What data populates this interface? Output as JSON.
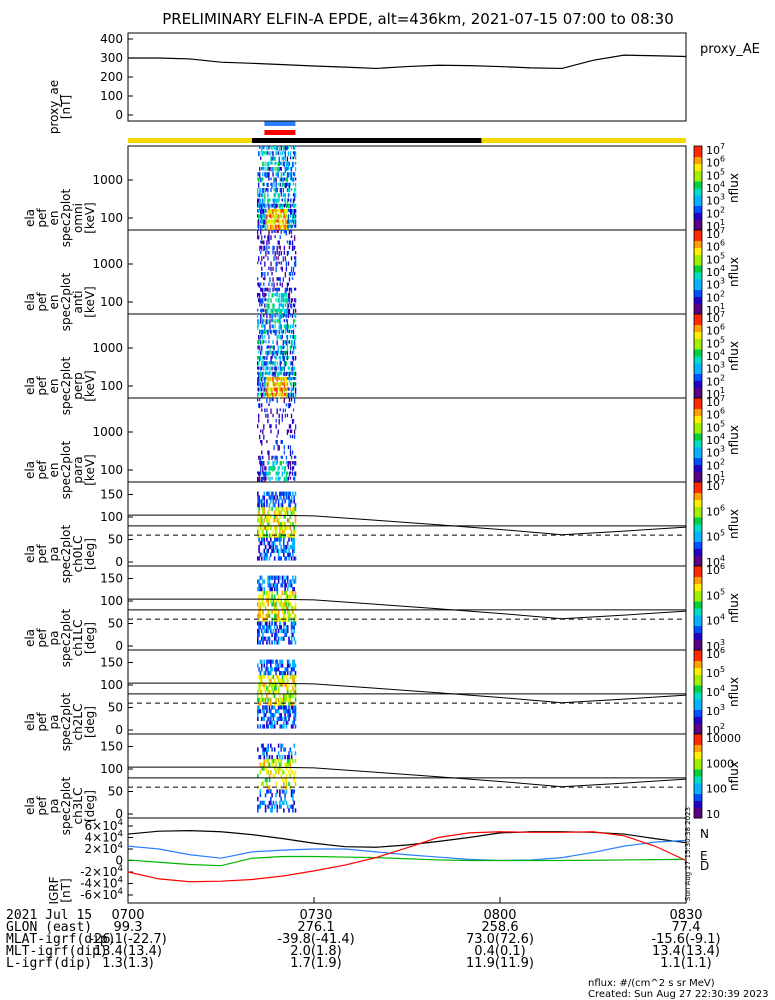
{
  "title": "PRELIMINARY ELFIN-A EPDE, alt=436km, 2021-07-15 07:00 to 08:30",
  "colors": {
    "yellow": "#f5d800",
    "blue": "#2a7fff",
    "red": "#ff0000",
    "black": "#000000",
    "green": "#00b400",
    "navy": "#1e1ea0"
  },
  "timebars": {
    "yellow_bar": "full width",
    "black_segment": [
      "07:20",
      "07:57"
    ],
    "blue_segment": [
      "07:22",
      "07:27"
    ],
    "red_segment": [
      "07:22",
      "07:27"
    ]
  },
  "panels": [
    {
      "id": "proxy_ae",
      "ylabel": [
        "proxy_ae",
        "[nT]"
      ],
      "right_label": "proxy_AE",
      "yticks": [
        "0",
        "100",
        "200",
        "300",
        "400"
      ]
    },
    {
      "id": "omni",
      "ylabel": [
        "ela",
        "pef",
        "en",
        "spec2plot",
        "omni",
        "[keV]"
      ],
      "yticks": [
        "100",
        "1000"
      ],
      "cbar_ticks": [
        "10^1",
        "10^2",
        "10^3",
        "10^4",
        "10^5",
        "10^6",
        "10^7"
      ],
      "cbar_label": "nflux"
    },
    {
      "id": "anti",
      "ylabel": [
        "ela",
        "pef",
        "en",
        "spec2plot",
        "anti",
        "[keV]"
      ],
      "yticks": [
        "100",
        "1000"
      ],
      "cbar_ticks": [
        "10^1",
        "10^2",
        "10^3",
        "10^4",
        "10^5",
        "10^6",
        "10^7"
      ],
      "cbar_label": "nflux"
    },
    {
      "id": "perp",
      "ylabel": [
        "ela",
        "pef",
        "en",
        "spec2plot",
        "perp",
        "[keV]"
      ],
      "yticks": [
        "100",
        "1000"
      ],
      "cbar_ticks": [
        "10^1",
        "10^2",
        "10^3",
        "10^4",
        "10^5",
        "10^6",
        "10^7"
      ],
      "cbar_label": "nflux"
    },
    {
      "id": "para",
      "ylabel": [
        "ela",
        "pef",
        "en",
        "spec2plot",
        "para",
        "[keV]"
      ],
      "yticks": [
        "100",
        "1000"
      ],
      "cbar_ticks": [
        "10^1",
        "10^2",
        "10^3",
        "10^4",
        "10^5",
        "10^6",
        "10^7"
      ],
      "cbar_label": "nflux"
    },
    {
      "id": "ch0",
      "ylabel": [
        "ela",
        "pef",
        "pa",
        "spec2plot",
        "ch0LC",
        "[deg]"
      ],
      "yticks": [
        "0",
        "50",
        "100",
        "150"
      ],
      "cbar_ticks": [
        "10^4",
        "10^5",
        "10^6",
        "10^7"
      ],
      "cbar_label": "nflux"
    },
    {
      "id": "ch1",
      "ylabel": [
        "ela",
        "pef",
        "pa",
        "spec2plot",
        "ch1LC",
        "[deg]"
      ],
      "yticks": [
        "0",
        "50",
        "100",
        "150"
      ],
      "cbar_ticks": [
        "10^3",
        "10^4",
        "10^5",
        "10^6"
      ],
      "cbar_label": "nflux"
    },
    {
      "id": "ch2",
      "ylabel": [
        "ela",
        "pef",
        "pa",
        "spec2plot",
        "ch2LC",
        "[deg]"
      ],
      "yticks": [
        "0",
        "50",
        "100",
        "150"
      ],
      "cbar_ticks": [
        "10^2",
        "10^3",
        "10^4",
        "10^5",
        "10^6"
      ],
      "cbar_label": "nflux"
    },
    {
      "id": "ch3",
      "ylabel": [
        "ela",
        "pef",
        "pa",
        "spec2plot",
        "ch3LC",
        "[deg]"
      ],
      "yticks": [
        "0",
        "50",
        "100",
        "150"
      ],
      "cbar_ticks": [
        "10",
        "100",
        "1000",
        "10000"
      ],
      "cbar_label": "nflux"
    },
    {
      "id": "igrf",
      "ylabel": [
        "IGRF",
        "[nT]"
      ],
      "yticks": [
        "-6×10^4",
        "-4×10^4",
        "-2×10^4",
        "0",
        "2×10^4",
        "4×10^4",
        "6×10^4"
      ],
      "legend": [
        "N",
        "E",
        "D"
      ],
      "side_note": "Sun Aug 27 15:30:38 2023"
    }
  ],
  "chart_data": {
    "type": "line",
    "proxy_ae": {
      "x": [
        "07:00",
        "07:05",
        "07:10",
        "07:15",
        "07:20",
        "07:25",
        "07:30",
        "07:35",
        "07:40",
        "07:45",
        "07:50",
        "07:55",
        "08:00",
        "08:05",
        "08:10",
        "08:15",
        "08:20",
        "08:25",
        "08:30"
      ],
      "y": [
        300,
        300,
        295,
        278,
        272,
        265,
        258,
        252,
        245,
        255,
        262,
        260,
        255,
        248,
        245,
        288,
        315,
        312,
        308
      ],
      "ylim": [
        0,
        420
      ]
    },
    "loss_cone_deg": {
      "x": [
        "07:22",
        "07:30",
        "07:40",
        "07:50",
        "08:00",
        "08:10",
        "08:20",
        "08:30"
      ],
      "upper_solid": [
        117,
        115,
        104,
        93,
        81,
        68,
        77,
        87
      ],
      "lower_solid": [
        90,
        90,
        90,
        90,
        90,
        90,
        90,
        90
      ],
      "dashed": [
        67,
        67,
        67,
        67,
        67,
        67,
        67,
        67
      ],
      "ylim": [
        0,
        180
      ]
    },
    "igrf_nT": {
      "x": [
        "07:00",
        "07:05",
        "07:10",
        "07:15",
        "07:20",
        "07:25",
        "07:30",
        "07:35",
        "07:40",
        "07:45",
        "07:50",
        "07:55",
        "08:00",
        "08:05",
        "08:10",
        "08:15",
        "08:20",
        "08:25",
        "08:30"
      ],
      "N": [
        -20000,
        -32000,
        -37000,
        -36000,
        -33000,
        -27000,
        -18000,
        -8000,
        5000,
        22000,
        40000,
        48000,
        50000,
        49000,
        49000,
        50000,
        43000,
        25000,
        0
      ],
      "E": [
        1000,
        -3000,
        -7000,
        -9000,
        4000,
        7000,
        7000,
        6000,
        5000,
        3000,
        1000,
        0,
        0,
        0,
        0,
        500,
        1000,
        1500,
        2000
      ],
      "D": [
        46000,
        51000,
        52000,
        50000,
        45000,
        38000,
        30000,
        24000,
        23000,
        27000,
        33000,
        40000,
        48000,
        50000,
        50000,
        49000,
        46000,
        38000,
        31000
      ],
      "B_blue": [
        25000,
        20000,
        10000,
        4000,
        15000,
        18000,
        20000,
        20000,
        15000,
        10000,
        6000,
        2000,
        0,
        1000,
        5000,
        14000,
        25000,
        32000,
        35000
      ],
      "ylim": [
        -65000,
        65000
      ]
    }
  },
  "xaxis": {
    "tick_labels": [
      "0700",
      "0730",
      "0800",
      "0830"
    ],
    "rows": [
      {
        "label": "2021 Jul 15",
        "values": [
          "0700",
          "0730",
          "0800",
          "0830"
        ]
      },
      {
        "label": "GLON (east)",
        "values": [
          "99.3",
          "276.1",
          "258.6",
          "77.4"
        ]
      },
      {
        "label": "MLAT-igrf(dip)",
        "values": [
          "-26.1(-22.7)",
          "-39.8(-41.4)",
          "73.0(72.6)",
          "-15.6(-9.1)"
        ]
      },
      {
        "label": "MLT-igrf(dip)",
        "values": [
          "13.4(13.4)",
          "2.0(1.8)",
          "0.4(0.1)",
          "13.4(13.4)"
        ]
      },
      {
        "label": "L-igrf(dip)",
        "values": [
          "1.3(1.3)",
          "1.7(1.9)",
          "11.9(11.9)",
          "1.1(1.1)"
        ]
      }
    ]
  },
  "footer": {
    "units": "nflux: #/(cm^2 s sr MeV)",
    "created": "Created: Sun Aug 27 22:30:39 2023"
  }
}
